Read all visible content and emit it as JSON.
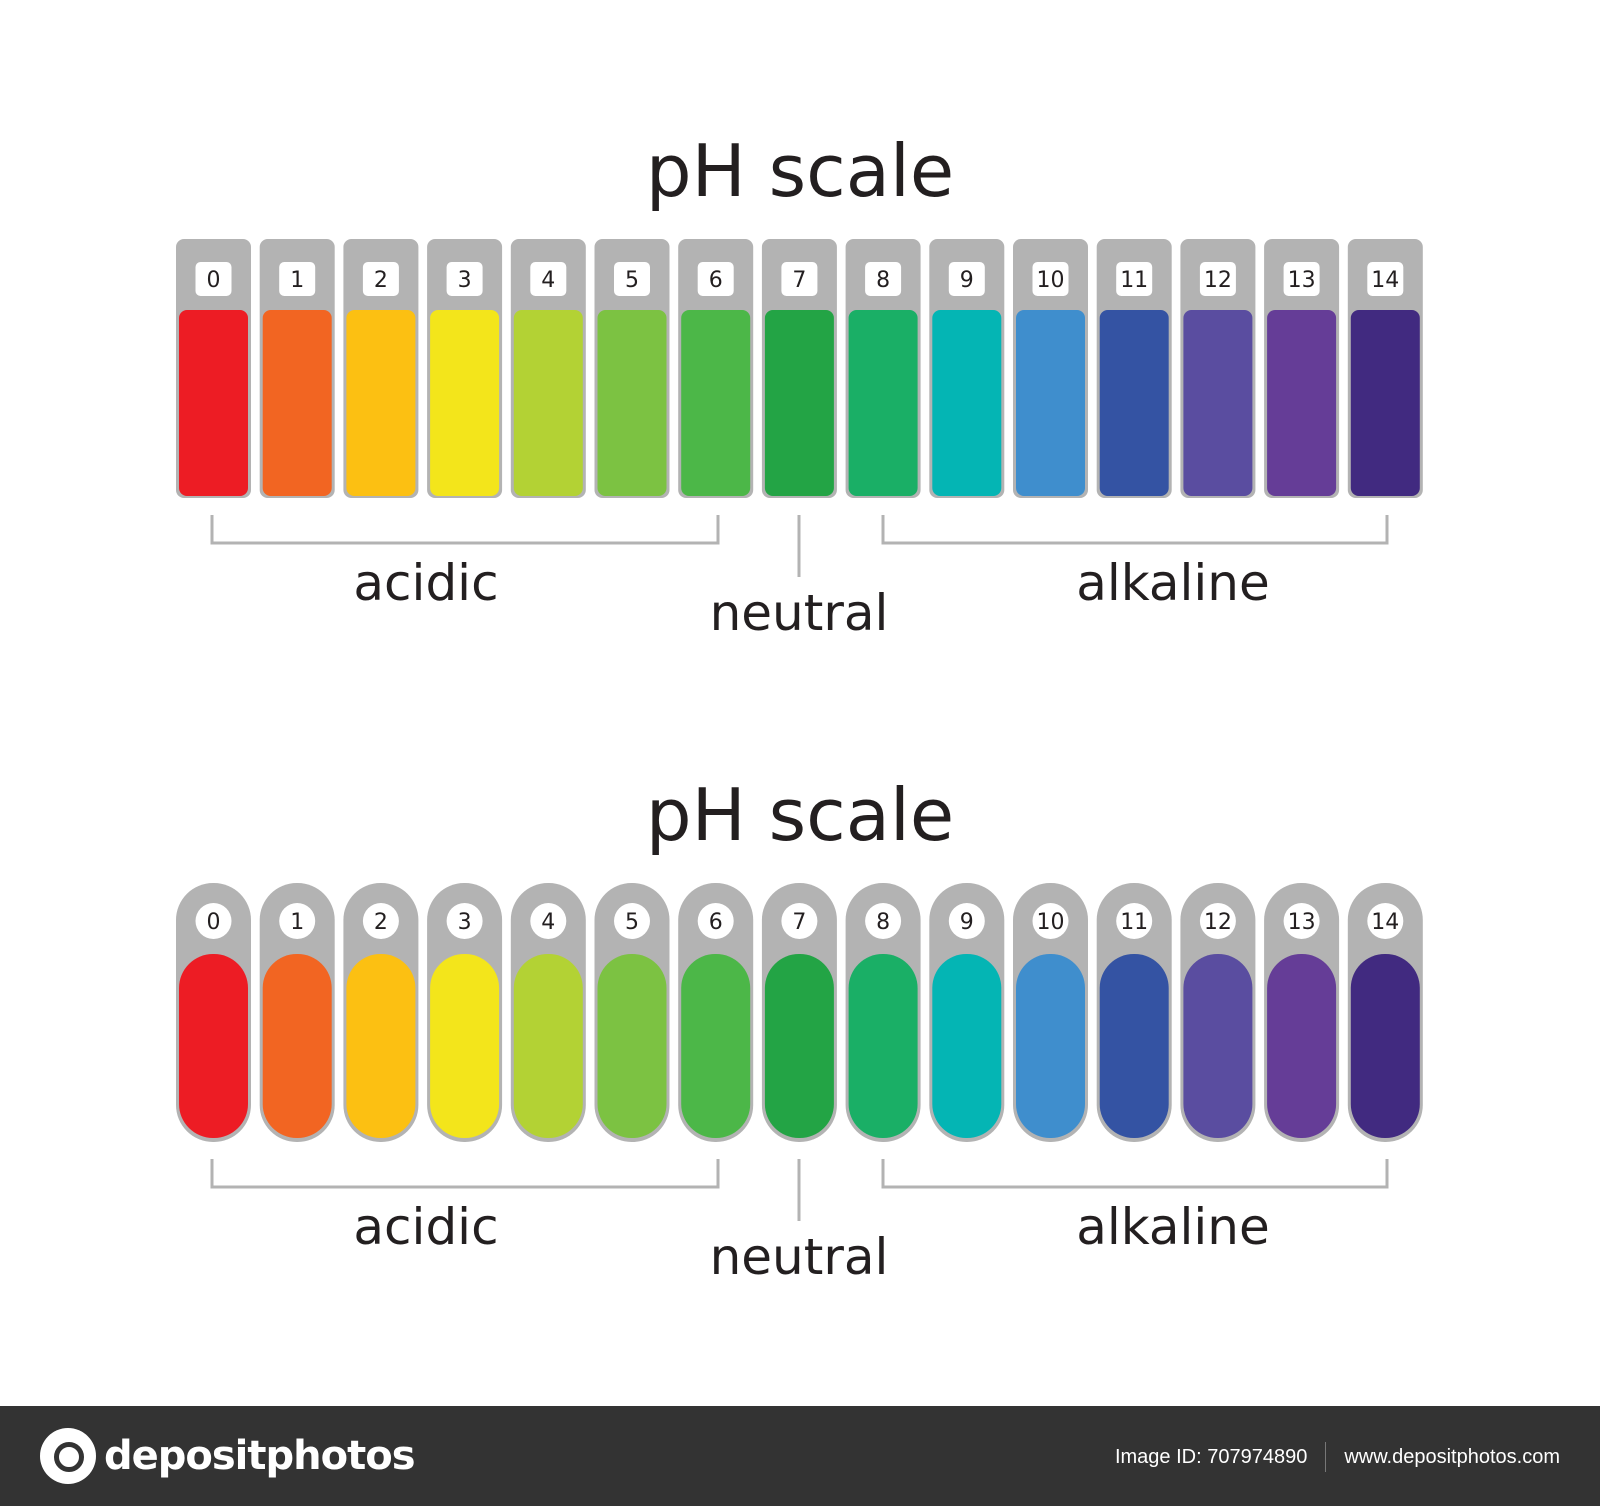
{
  "diagrams": [
    {
      "title": "pH scale",
      "style": "rectangular"
    },
    {
      "title": "pH scale",
      "style": "rounded"
    }
  ],
  "levels": [
    {
      "value": "0",
      "color": "#ed1c24"
    },
    {
      "value": "1",
      "color": "#f26522"
    },
    {
      "value": "2",
      "color": "#fcc012"
    },
    {
      "value": "3",
      "color": "#f3e51b"
    },
    {
      "value": "4",
      "color": "#b3d234"
    },
    {
      "value": "5",
      "color": "#7cc242"
    },
    {
      "value": "6",
      "color": "#4cb748"
    },
    {
      "value": "7",
      "color": "#23a445"
    },
    {
      "value": "8",
      "color": "#1aaf66"
    },
    {
      "value": "9",
      "color": "#04b5b4"
    },
    {
      "value": "10",
      "color": "#3f8ecd"
    },
    {
      "value": "11",
      "color": "#3453a3"
    },
    {
      "value": "12",
      "color": "#5a4da0"
    },
    {
      "value": "13",
      "color": "#653d97"
    },
    {
      "value": "14",
      "color": "#412a80"
    }
  ],
  "groups": {
    "acidic": "acidic",
    "neutral": "neutral",
    "alkaline": "alkaline"
  },
  "footer": {
    "brand": "depositphotos",
    "image_id": "Image ID: 707974890",
    "url": "www.depositphotos.com"
  }
}
